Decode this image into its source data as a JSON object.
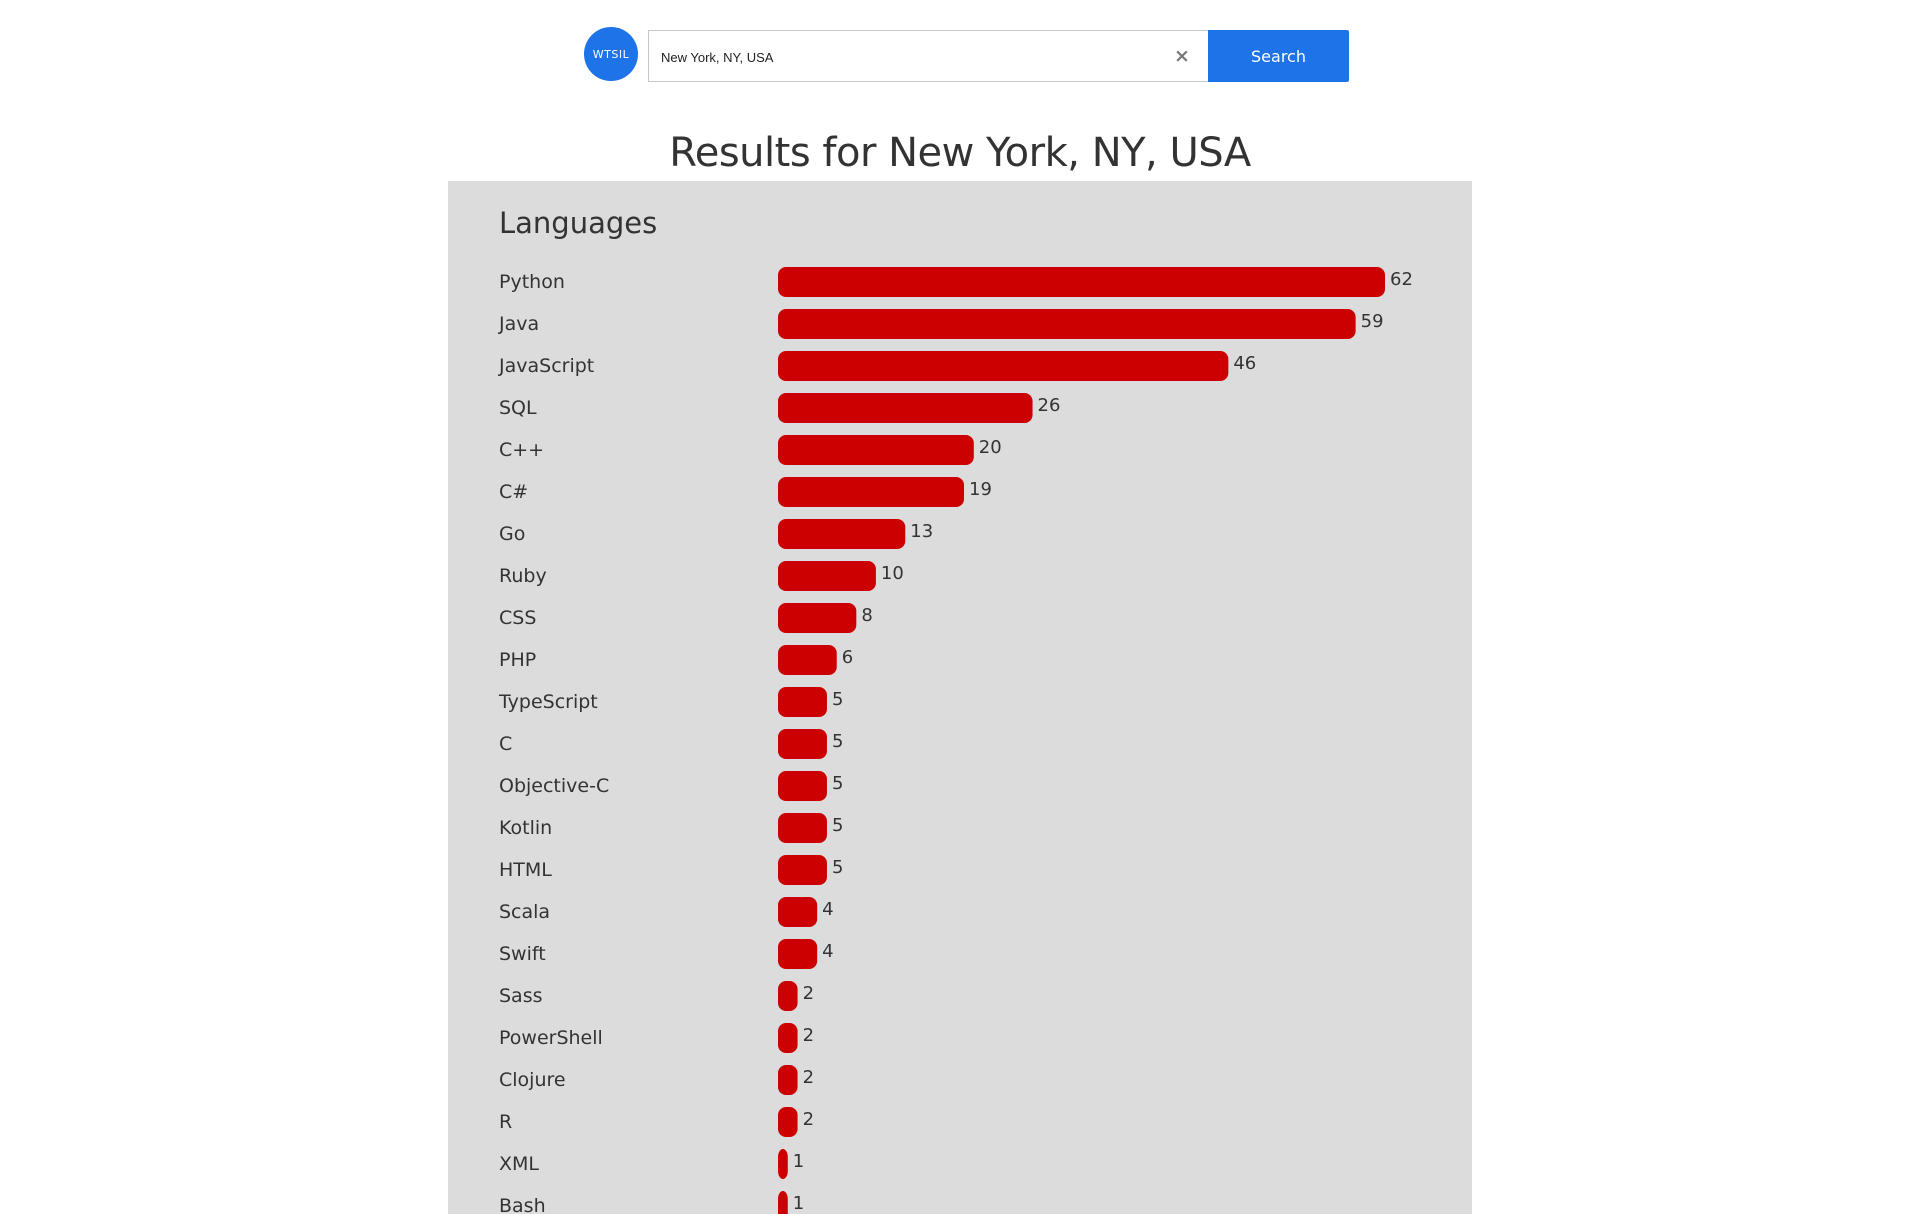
{
  "header": {
    "logo_text": "WTSIL",
    "search": {
      "value": "New York, NY, USA",
      "placeholder": ""
    },
    "clear_icon": "×",
    "search_button_label": "Search"
  },
  "main": {
    "title": "Results for New York, NY, USA"
  },
  "colors": {
    "accent": "#1e73e8",
    "bar": "#cc0000",
    "panel_bg": "#dcdcdc"
  },
  "chart_data": {
    "type": "bar",
    "orientation": "horizontal",
    "title": "Languages",
    "categories": [
      "Python",
      "Java",
      "JavaScript",
      "SQL",
      "C++",
      "C#",
      "Go",
      "Ruby",
      "CSS",
      "PHP",
      "TypeScript",
      "C",
      "Objective-C",
      "Kotlin",
      "HTML",
      "Scala",
      "Swift",
      "Sass",
      "PowerShell",
      "Clojure",
      "R",
      "XML",
      "Bash"
    ],
    "values": [
      62,
      59,
      46,
      26,
      20,
      19,
      13,
      10,
      8,
      6,
      5,
      5,
      5,
      5,
      5,
      4,
      4,
      2,
      2,
      2,
      2,
      1,
      1
    ],
    "xlabel": "",
    "ylabel": "",
    "grid": false,
    "data_labels": true
  }
}
